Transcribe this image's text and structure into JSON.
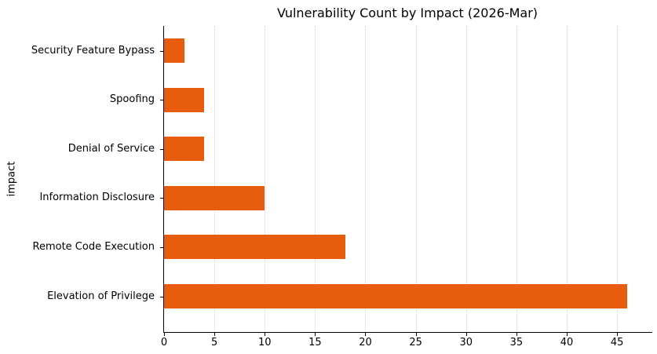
{
  "figure": {
    "background": "#ffffff",
    "axis_color": "#000000",
    "grid_color": "#d2d2d2",
    "text_color": "#000000"
  },
  "chart_data": {
    "type": "bar",
    "orientation": "horizontal",
    "title": "Vulnerability Count by Impact (2026-Mar)",
    "xlabel": "",
    "ylabel": "impact",
    "categories": [
      "Security Feature Bypass",
      "Spoofing",
      "Denial of Service",
      "Information Disclosure",
      "Remote Code Execution",
      "Elevation of Privilege"
    ],
    "values": [
      2,
      4,
      4,
      10,
      18,
      46
    ],
    "bar_color": "#e85c0d",
    "xlim": [
      0,
      48.5
    ],
    "xticks": [
      0,
      5,
      10,
      15,
      20,
      25,
      30,
      35,
      40,
      45
    ],
    "grid": "vertical-dotted-at-xticks",
    "legend": "none",
    "spines": [
      "left",
      "bottom"
    ]
  }
}
